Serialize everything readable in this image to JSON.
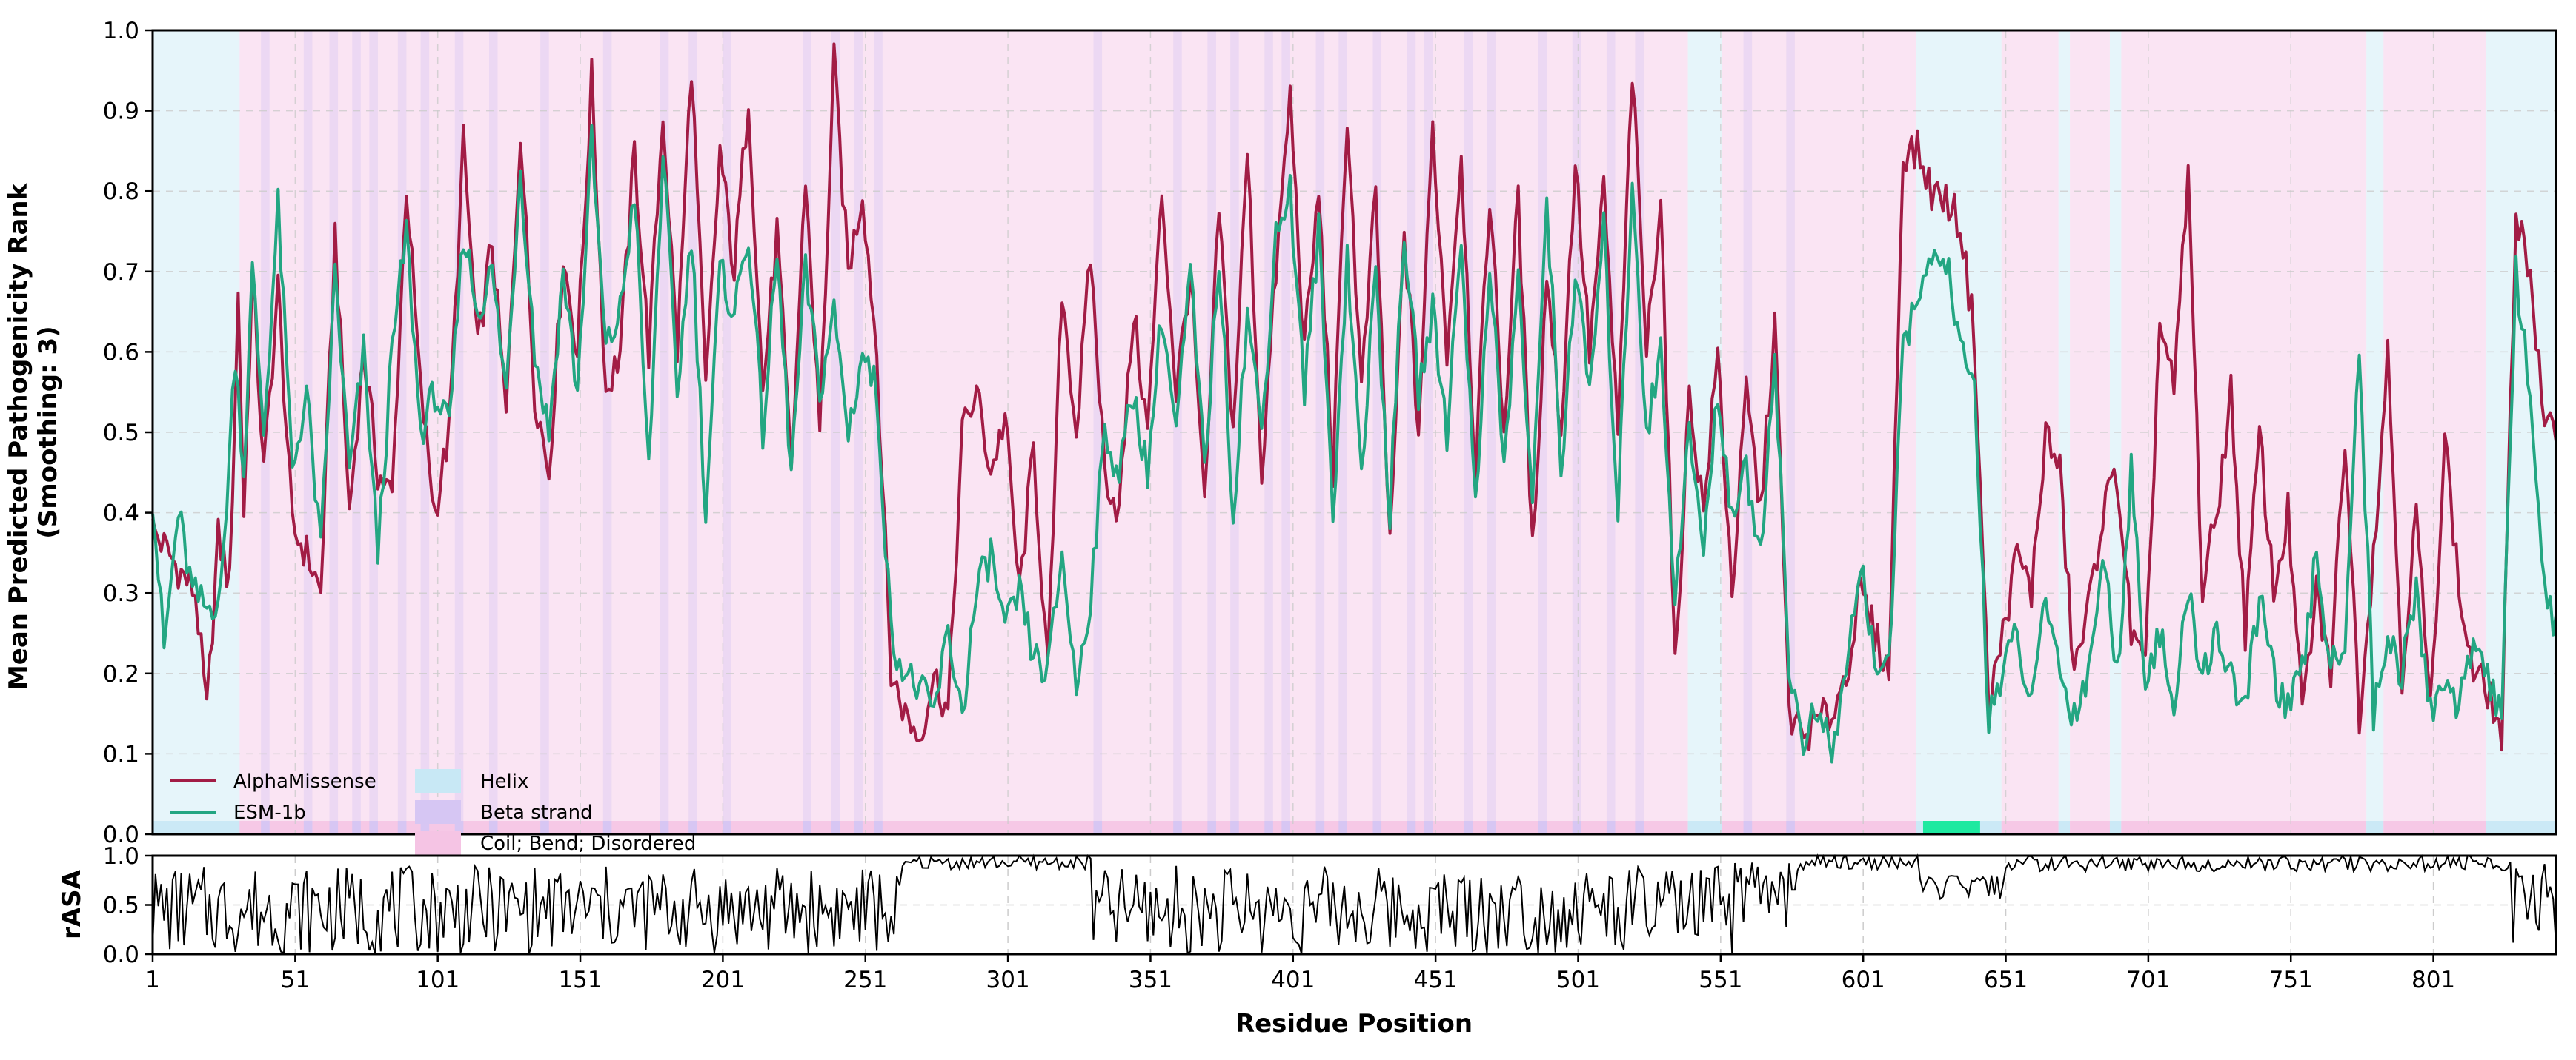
{
  "chart_data": [
    {
      "type": "line",
      "panel": "top",
      "ylabel": "Mean Predicted Pathogenicity Rank\n(Smoothing: 3)",
      "xlim": [
        1,
        844
      ],
      "ylim": [
        0.0,
        1.0
      ],
      "yticks": [
        "0.0",
        "0.1",
        "0.2",
        "0.3",
        "0.4",
        "0.5",
        "0.6",
        "0.7",
        "0.8",
        "0.9",
        "1.0"
      ],
      "grid": true,
      "legend_position": "lower-left",
      "series": [
        {
          "name": "AlphaMissense",
          "color": "#a21c45",
          "x": [
            1,
            10,
            16,
            20,
            24,
            28,
            31,
            33,
            36,
            40,
            45,
            50,
            55,
            60,
            65,
            70,
            75,
            80,
            85,
            90,
            95,
            100,
            105,
            110,
            115,
            120,
            125,
            130,
            135,
            140,
            145,
            150,
            155,
            160,
            165,
            170,
            175,
            180,
            185,
            190,
            195,
            200,
            205,
            210,
            215,
            220,
            225,
            230,
            235,
            240,
            245,
            250,
            255,
            260,
            265,
            270,
            275,
            280,
            285,
            290,
            295,
            300,
            305,
            310,
            315,
            320,
            325,
            330,
            335,
            340,
            345,
            350,
            355,
            360,
            365,
            370,
            375,
            380,
            385,
            390,
            395,
            400,
            405,
            410,
            415,
            420,
            425,
            430,
            435,
            440,
            445,
            450,
            455,
            460,
            465,
            470,
            475,
            480,
            485,
            490,
            495,
            500,
            505,
            510,
            515,
            520,
            525,
            530,
            535,
            540,
            545,
            550,
            555,
            560,
            565,
            570,
            575,
            580,
            585,
            590,
            595,
            600,
            605,
            610,
            615,
            620,
            625,
            630,
            635,
            640,
            645,
            650,
            655,
            660,
            665,
            670,
            675,
            680,
            685,
            690,
            695,
            700,
            705,
            710,
            715,
            720,
            725,
            730,
            735,
            740,
            745,
            750,
            755,
            760,
            765,
            770,
            775,
            780,
            785,
            790,
            795,
            800,
            805,
            810,
            815,
            820,
            825,
            830,
            835,
            840,
            844
          ],
          "values": [
            0.38,
            0.33,
            0.3,
            0.15,
            0.37,
            0.31,
            0.67,
            0.4,
            0.7,
            0.45,
            0.68,
            0.38,
            0.35,
            0.3,
            0.75,
            0.4,
            0.6,
            0.45,
            0.42,
            0.81,
            0.55,
            0.4,
            0.5,
            0.86,
            0.6,
            0.74,
            0.52,
            0.88,
            0.55,
            0.45,
            0.72,
            0.6,
            0.94,
            0.55,
            0.6,
            0.85,
            0.6,
            0.9,
            0.6,
            0.96,
            0.55,
            0.85,
            0.7,
            0.92,
            0.55,
            0.75,
            0.45,
            0.82,
            0.5,
            0.96,
            0.7,
            0.8,
            0.6,
            0.2,
            0.15,
            0.12,
            0.2,
            0.15,
            0.5,
            0.55,
            0.45,
            0.52,
            0.3,
            0.48,
            0.2,
            0.68,
            0.5,
            0.72,
            0.45,
            0.4,
            0.65,
            0.5,
            0.8,
            0.55,
            0.7,
            0.4,
            0.78,
            0.5,
            0.85,
            0.45,
            0.7,
            0.92,
            0.6,
            0.8,
            0.45,
            0.9,
            0.55,
            0.8,
            0.35,
            0.75,
            0.5,
            0.88,
            0.6,
            0.85,
            0.45,
            0.8,
            0.5,
            0.8,
            0.35,
            0.7,
            0.5,
            0.84,
            0.6,
            0.8,
            0.5,
            0.95,
            0.6,
            0.8,
            0.2,
            0.55,
            0.4,
            0.6,
            0.3,
            0.55,
            0.4,
            0.64,
            0.15,
            0.12,
            0.14,
            0.15,
            0.2,
            0.3,
            0.25,
            0.2,
            0.85,
            0.85,
            0.8,
            0.79,
            0.76,
            0.62,
            0.16,
            0.25,
            0.35,
            0.3,
            0.5,
            0.45,
            0.2,
            0.28,
            0.4,
            0.45,
            0.25,
            0.2,
            0.64,
            0.55,
            0.82,
            0.3,
            0.4,
            0.55,
            0.25,
            0.5,
            0.3,
            0.4,
            0.15,
            0.3,
            0.2,
            0.5,
            0.15,
            0.35,
            0.6,
            0.2,
            0.4,
            0.15,
            0.5,
            0.3,
            0.2,
            0.18,
            0.12,
            0.78,
            0.7,
            0.5,
            0.5
          ]
        },
        {
          "name": "ESM-1b",
          "color": "#23a682",
          "x": [
            1,
            5,
            10,
            15,
            20,
            25,
            30,
            33,
            36,
            40,
            45,
            50,
            55,
            60,
            65,
            70,
            75,
            80,
            85,
            90,
            95,
            100,
            105,
            110,
            115,
            120,
            125,
            130,
            135,
            140,
            145,
            150,
            155,
            160,
            165,
            170,
            175,
            180,
            185,
            190,
            195,
            200,
            205,
            210,
            215,
            220,
            225,
            230,
            235,
            240,
            245,
            250,
            255,
            260,
            265,
            270,
            275,
            280,
            285,
            290,
            295,
            300,
            305,
            310,
            315,
            320,
            325,
            330,
            335,
            340,
            345,
            350,
            355,
            360,
            365,
            370,
            375,
            380,
            385,
            390,
            395,
            400,
            405,
            410,
            415,
            420,
            425,
            430,
            435,
            440,
            445,
            450,
            455,
            460,
            465,
            470,
            475,
            480,
            485,
            490,
            495,
            500,
            505,
            510,
            515,
            520,
            525,
            530,
            535,
            540,
            545,
            550,
            555,
            560,
            565,
            570,
            575,
            580,
            585,
            590,
            595,
            600,
            605,
            610,
            615,
            620,
            625,
            630,
            635,
            640,
            645,
            650,
            655,
            660,
            665,
            670,
            675,
            680,
            685,
            690,
            695,
            700,
            705,
            710,
            715,
            720,
            725,
            730,
            735,
            740,
            745,
            750,
            755,
            760,
            765,
            770,
            775,
            780,
            785,
            790,
            795,
            800,
            805,
            810,
            815,
            820,
            825,
            830,
            835,
            840,
            844
          ],
          "values": [
            0.42,
            0.23,
            0.4,
            0.3,
            0.28,
            0.3,
            0.6,
            0.45,
            0.7,
            0.5,
            0.78,
            0.45,
            0.55,
            0.35,
            0.7,
            0.45,
            0.6,
            0.35,
            0.6,
            0.75,
            0.5,
            0.55,
            0.5,
            0.75,
            0.65,
            0.7,
            0.55,
            0.83,
            0.6,
            0.5,
            0.7,
            0.55,
            0.86,
            0.6,
            0.65,
            0.8,
            0.45,
            0.85,
            0.55,
            0.75,
            0.4,
            0.7,
            0.65,
            0.75,
            0.5,
            0.72,
            0.45,
            0.7,
            0.55,
            0.65,
            0.5,
            0.6,
            0.55,
            0.25,
            0.2,
            0.18,
            0.15,
            0.25,
            0.15,
            0.3,
            0.35,
            0.25,
            0.3,
            0.22,
            0.2,
            0.35,
            0.18,
            0.3,
            0.5,
            0.45,
            0.55,
            0.45,
            0.65,
            0.5,
            0.7,
            0.45,
            0.72,
            0.4,
            0.65,
            0.5,
            0.75,
            0.8,
            0.55,
            0.75,
            0.4,
            0.72,
            0.45,
            0.7,
            0.4,
            0.75,
            0.55,
            0.65,
            0.5,
            0.75,
            0.4,
            0.72,
            0.45,
            0.7,
            0.4,
            0.8,
            0.45,
            0.7,
            0.55,
            0.75,
            0.4,
            0.82,
            0.5,
            0.6,
            0.3,
            0.5,
            0.35,
            0.55,
            0.4,
            0.45,
            0.35,
            0.6,
            0.2,
            0.12,
            0.15,
            0.1,
            0.2,
            0.34,
            0.22,
            0.2,
            0.6,
            0.68,
            0.7,
            0.72,
            0.6,
            0.55,
            0.15,
            0.2,
            0.25,
            0.15,
            0.3,
            0.2,
            0.15,
            0.2,
            0.35,
            0.2,
            0.45,
            0.2,
            0.25,
            0.15,
            0.3,
            0.2,
            0.25,
            0.2,
            0.15,
            0.3,
            0.2,
            0.15,
            0.2,
            0.35,
            0.2,
            0.25,
            0.61,
            0.15,
            0.25,
            0.2,
            0.3,
            0.15,
            0.2,
            0.15,
            0.25,
            0.2,
            0.15,
            0.7,
            0.55,
            0.3,
            0.25
          ]
        }
      ],
      "legend_secondary": [
        {
          "name": "Helix",
          "color": "#c8e8f5"
        },
        {
          "name": "Beta strand",
          "color": "#d6c6f3"
        },
        {
          "name": "Coil; Bend; Disordered",
          "color": "#f5c4e4"
        }
      ],
      "background_regions": {
        "types": [
          "Helix",
          "Coil; Bend; Disordered",
          "Helix",
          "Coil; Bend; Disordered",
          "Helix",
          "Coil; Bend; Disordered",
          "Helix",
          "Coil; Bend; Disordered",
          "Helix",
          "Coil; Bend; Disordered",
          "Helix",
          "Coil; Bend; Disordered",
          "Helix"
        ],
        "starts": [
          1,
          32,
          540,
          552,
          620,
          650,
          670,
          674,
          688,
          692,
          778,
          784,
          820
        ],
        "ends": [
          31,
          539,
          551,
          619,
          649,
          669,
          673,
          687,
          691,
          777,
          783,
          819,
          844
        ],
        "beta_strand_positions": [
          40,
          55,
          64,
          72,
          78,
          88,
          96,
          108,
          120,
          138,
          160,
          180,
          190,
          202,
          230,
          240,
          248,
          255,
          332,
          360,
          372,
          380,
          392,
          398,
          410,
          418,
          430,
          442,
          448,
          462,
          470,
          488,
          500,
          512,
          522,
          560,
          575
        ]
      },
      "highlight": {
        "start": 622,
        "end": 642,
        "color": "#1de9a0"
      }
    },
    {
      "type": "line",
      "panel": "bottom",
      "ylabel": "rASA",
      "xlabel": "Residue Position",
      "xlim": [
        1,
        844
      ],
      "ylim": [
        0.0,
        1.0
      ],
      "yticks": [
        "0.0",
        "0.5",
        "1.0"
      ],
      "xticks": [
        "1",
        "51",
        "101",
        "151",
        "201",
        "251",
        "301",
        "351",
        "401",
        "451",
        "501",
        "551",
        "601",
        "651",
        "701",
        "751",
        "801"
      ],
      "grid": true,
      "series": [
        {
          "color": "#000000",
          "segments": [
            {
              "start": 1,
              "end": 264,
              "mean": 0.45,
              "amplitude": 0.45
            },
            {
              "start": 265,
              "end": 330,
              "mean": 0.93,
              "amplitude": 0.07
            },
            {
              "start": 331,
              "end": 555,
              "mean": 0.45,
              "amplitude": 0.45
            },
            {
              "start": 556,
              "end": 578,
              "mean": 0.6,
              "amplitude": 0.35
            },
            {
              "start": 579,
              "end": 620,
              "mean": 0.93,
              "amplitude": 0.07
            },
            {
              "start": 621,
              "end": 650,
              "mean": 0.68,
              "amplitude": 0.12
            },
            {
              "start": 651,
              "end": 828,
              "mean": 0.92,
              "amplitude": 0.08
            },
            {
              "start": 829,
              "end": 844,
              "mean": 0.5,
              "amplitude": 0.45
            }
          ]
        }
      ]
    }
  ]
}
